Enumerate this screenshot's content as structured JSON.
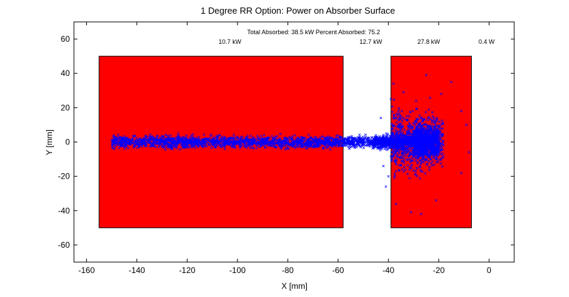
{
  "chart_data": {
    "type": "scatter",
    "title": "1 Degree RR Option: Power on Absorber Surface",
    "subtitle": "Total Absorbed: 38.5 kW Percent Absorbed: 75.2",
    "xlabel": "X [mm]",
    "ylabel": "Y [mm]",
    "xlim": [
      -165,
      10
    ],
    "ylim": [
      -70,
      70
    ],
    "xticks": [
      -160,
      -140,
      -120,
      -100,
      -80,
      -60,
      -40,
      -20,
      0
    ],
    "yticks": [
      -60,
      -40,
      -20,
      0,
      20,
      40,
      60
    ],
    "xtick_labels": [
      "-160",
      "-140",
      "-120",
      "-100",
      "-80",
      "-60",
      "-40",
      "-20",
      "0"
    ],
    "ytick_labels": [
      "-60",
      "-40",
      "-20",
      "0",
      "20",
      "40",
      "60"
    ],
    "grid": false,
    "region_labels": [
      {
        "text": "10.7 kW",
        "x": -103
      },
      {
        "text": "12.7 kW",
        "x": -47
      },
      {
        "text": "27.8 kW",
        "x": -24
      },
      {
        "text": "0.4 W",
        "x": -1
      }
    ],
    "absorber_blocks": [
      {
        "x0": -155,
        "x1": -58,
        "y0": -50,
        "y1": 50,
        "color": "#ff0000"
      },
      {
        "x0": -39,
        "x1": -7,
        "y0": -50,
        "y1": 50,
        "color": "#ff0000"
      }
    ],
    "series": [
      {
        "marker": "x",
        "color": "#0000ff",
        "bands": [
          {
            "x0": -150,
            "x1": -58,
            "y_center": 0,
            "y_spread": 2.8,
            "count": 1500
          },
          {
            "x0": -58,
            "x1": -45,
            "y_center": 0,
            "y_spread": 2.5,
            "count": 260
          },
          {
            "x0": -46,
            "x1": -38,
            "y_center": 0,
            "y_spread": 3.0,
            "count": 380
          },
          {
            "x0": -38,
            "x1": -30,
            "y_center": 0,
            "y_spread": 4.0,
            "count": 280
          },
          {
            "x0": -30,
            "x1": -20,
            "y_center": 0,
            "y_spread": 7.0,
            "count": 900
          },
          {
            "x0": -39,
            "x1": -18,
            "y_center": 0,
            "y_spread": 14.0,
            "count": 700
          }
        ],
        "outliers": [
          [
            -38,
            34
          ],
          [
            -39,
            25
          ],
          [
            -41,
            -26
          ],
          [
            -42,
            -14
          ],
          [
            -43,
            14
          ],
          [
            -40,
            -20
          ],
          [
            -15,
            35
          ],
          [
            -31,
            -41
          ],
          [
            -25,
            39
          ],
          [
            -21,
            -34
          ],
          [
            -11,
            18
          ],
          [
            -11,
            -18
          ],
          [
            -9,
            10
          ],
          [
            -8,
            -6
          ],
          [
            -27,
            -42
          ],
          [
            -34,
            29
          ],
          [
            -37,
            -36
          ],
          [
            -36,
            18
          ],
          [
            -19,
            28
          ],
          [
            -29,
            24
          ]
        ]
      }
    ]
  }
}
